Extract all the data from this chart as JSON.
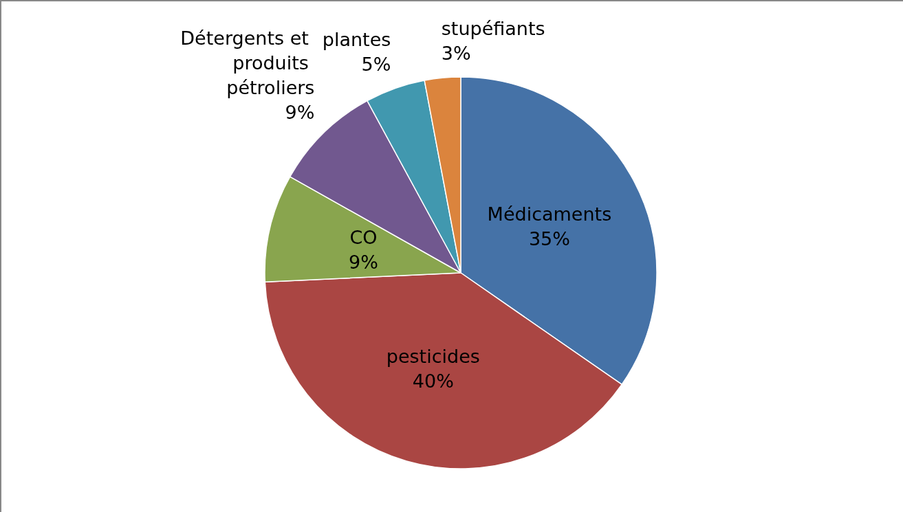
{
  "chart_data": {
    "type": "pie",
    "categories": [
      "Médicaments",
      "pesticides",
      "CO",
      "Détergents et produits pétroliers",
      "plantes",
      "stupéfiants"
    ],
    "values": [
      35,
      40,
      9,
      9,
      5,
      3
    ],
    "value_labels": [
      "35%",
      "40%",
      "9%",
      "9%",
      "5%",
      "3%"
    ],
    "colors": [
      "#4572a7",
      "#aa4643",
      "#89a54e",
      "#71588f",
      "#4198af",
      "#db843d"
    ],
    "legend": false
  }
}
